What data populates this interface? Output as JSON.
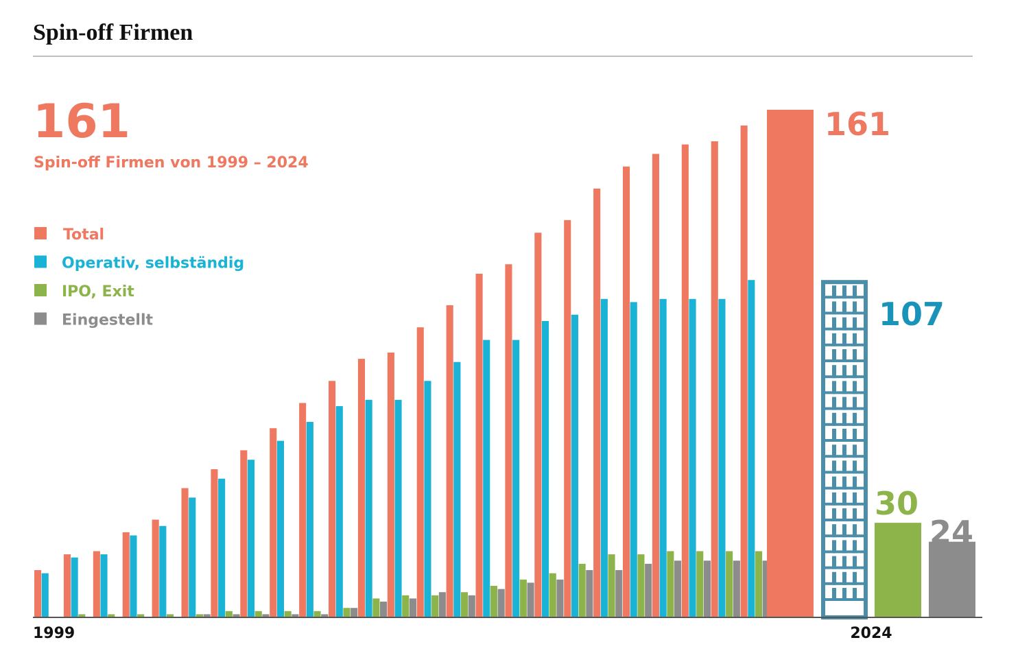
{
  "chart_data": {
    "type": "bar",
    "title": "Spin-off Firmen",
    "headline": "161",
    "subtitle": "Spin-off Firmen von 1999 – 2024",
    "categories": [
      "1999",
      null,
      null,
      null,
      null,
      null,
      null,
      null,
      null,
      null,
      null,
      null,
      null,
      null,
      null,
      null,
      null,
      null,
      null,
      null,
      null,
      null,
      null,
      null,
      null,
      "2024"
    ],
    "series": [
      {
        "name": "Total",
        "color": "#ee7860",
        "values": [
          15,
          20,
          21,
          27,
          31,
          41,
          47,
          53,
          60,
          68,
          75,
          82,
          84,
          92,
          99,
          109,
          112,
          122,
          126,
          136,
          143,
          147,
          150,
          151,
          156,
          161
        ]
      },
      {
        "name": "Operativ, selbständig",
        "color": "#1ab3d6",
        "values": [
          14,
          19,
          20,
          26,
          29,
          38,
          44,
          50,
          56,
          62,
          67,
          69,
          69,
          75,
          81,
          88,
          88,
          94,
          96,
          101,
          100,
          101,
          101,
          101,
          107,
          107
        ]
      },
      {
        "name": "IPO, Exit",
        "color": "#8db44b",
        "values": [
          0,
          1,
          1,
          1,
          1,
          1,
          2,
          2,
          2,
          2,
          3,
          6,
          7,
          7,
          8,
          10,
          12,
          14,
          17,
          20,
          20,
          21,
          21,
          21,
          21,
          30
        ]
      },
      {
        "name": "Eingestellt",
        "color": "#8c8c8c",
        "values": [
          0,
          0,
          0,
          0,
          0,
          1,
          1,
          1,
          1,
          1,
          3,
          5,
          6,
          8,
          7,
          9,
          11,
          12,
          15,
          15,
          17,
          18,
          18,
          18,
          18,
          24
        ]
      }
    ],
    "ylim": [
      0,
      161
    ]
  }
}
